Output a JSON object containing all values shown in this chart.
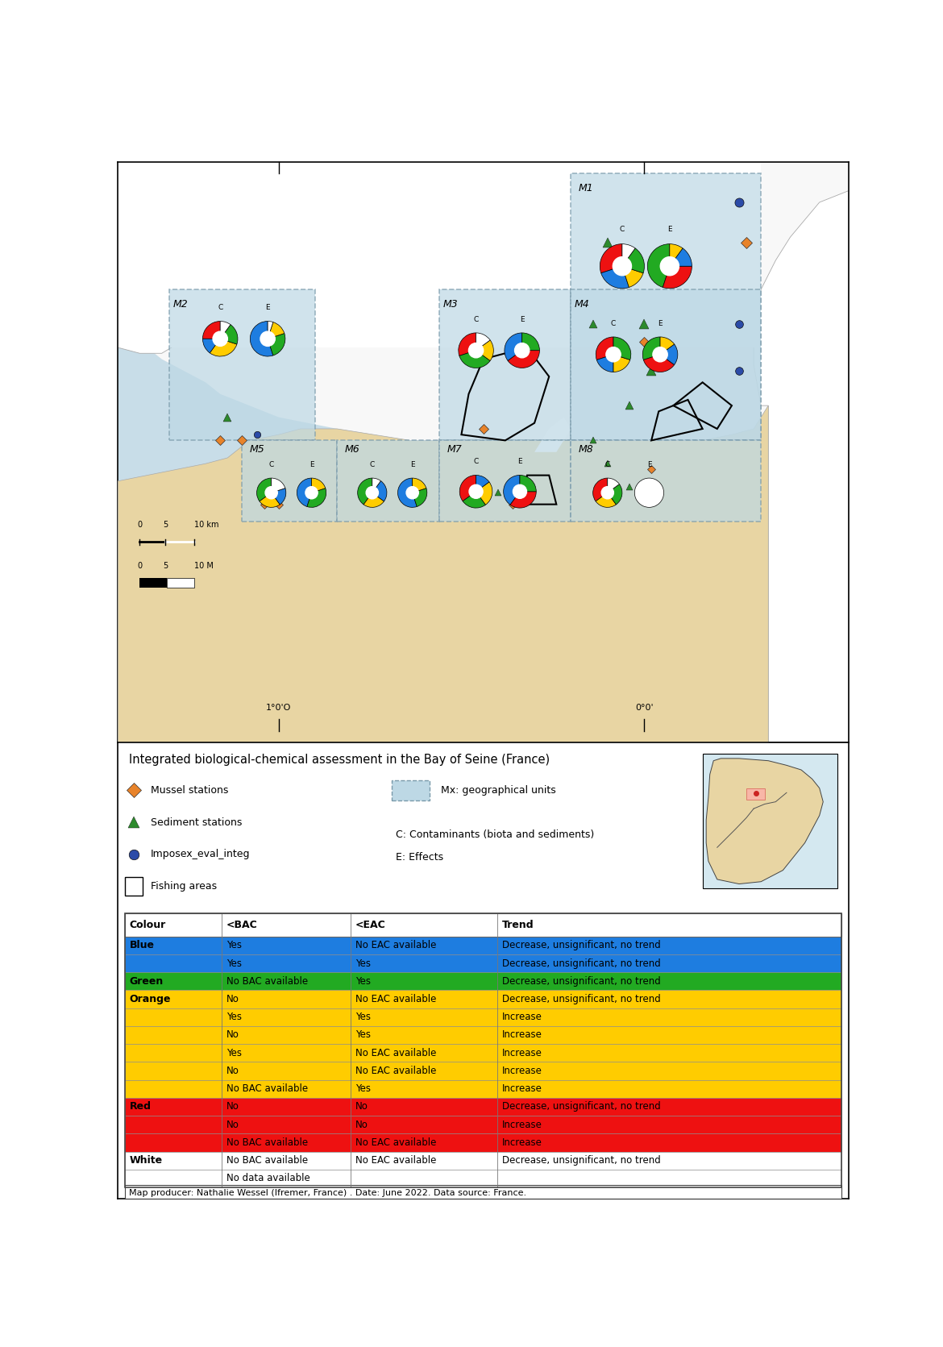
{
  "figure_width": 11.7,
  "figure_height": 16.71,
  "sea_color": "#c8dde8",
  "land_color": "#e8d5a3",
  "land_color_white": "#ffffff",
  "unit_fill_color": "#bdd8e5",
  "unit_border_color": "#7a9aaa",
  "title_legend": "Integrated biological-chemical assessment in the Bay of Seine (France)",
  "table_headers": [
    "Colour",
    "<BAC",
    "<EAC",
    "Trend"
  ],
  "table_rows": [
    {
      "color": "#1e7de0",
      "label": "Blue",
      "bac": "Yes",
      "eac": "No EAC available",
      "trend": "Decrease, unsignificant, no trend"
    },
    {
      "color": "#1e7de0",
      "label": "",
      "bac": "Yes",
      "eac": "Yes",
      "trend": "Decrease, unsignificant, no trend"
    },
    {
      "color": "#22aa22",
      "label": "Green",
      "bac": "No BAC available",
      "eac": "Yes",
      "trend": "Decrease, unsignificant, no trend"
    },
    {
      "color": "#ffcc00",
      "label": "Orange",
      "bac": "No",
      "eac": "No EAC available",
      "trend": "Decrease, unsignificant, no trend"
    },
    {
      "color": "#ffcc00",
      "label": "",
      "bac": "Yes",
      "eac": "Yes",
      "trend": "Increase"
    },
    {
      "color": "#ffcc00",
      "label": "",
      "bac": "No",
      "eac": "Yes",
      "trend": "Increase"
    },
    {
      "color": "#ffcc00",
      "label": "",
      "bac": "Yes",
      "eac": "No EAC available",
      "trend": "Increase"
    },
    {
      "color": "#ffcc00",
      "label": "",
      "bac": "No",
      "eac": "No EAC available",
      "trend": "Increase"
    },
    {
      "color": "#ffcc00",
      "label": "",
      "bac": "No BAC available",
      "eac": "Yes",
      "trend": "Increase"
    },
    {
      "color": "#ee1111",
      "label": "Red",
      "bac": "No",
      "eac": "No",
      "trend": "Decrease, unsignificant, no trend"
    },
    {
      "color": "#ee1111",
      "label": "",
      "bac": "No",
      "eac": "No",
      "trend": "Increase"
    },
    {
      "color": "#ee1111",
      "label": "",
      "bac": "No BAC available",
      "eac": "No EAC available",
      "trend": "Increase"
    },
    {
      "color": "#ffffff",
      "label": "White",
      "bac": "No BAC available",
      "eac": "No EAC available",
      "trend": "Decrease, unsignificant, no trend"
    },
    {
      "color": "#ffffff",
      "label": "",
      "bac": "No data available",
      "eac": "",
      "trend": ""
    }
  ],
  "footer": "Map producer: Nathalie Wessel (Ifremer, France) . Date: June 2022. Data source: France.",
  "pie_charts": {
    "M1_C": {
      "slices": [
        0.3,
        0.25,
        0.15,
        0.2,
        0.1
      ],
      "colors": [
        "#ee1111",
        "#1e7de0",
        "#ffcc00",
        "#22aa22",
        "#ffffff"
      ]
    },
    "M1_E": {
      "slices": [
        0.45,
        0.3,
        0.15,
        0.1
      ],
      "colors": [
        "#22aa22",
        "#ee1111",
        "#1e7de0",
        "#ffcc00"
      ]
    },
    "M2_C": {
      "slices": [
        0.25,
        0.15,
        0.3,
        0.2,
        0.1
      ],
      "colors": [
        "#ee1111",
        "#1e7de0",
        "#ffcc00",
        "#22aa22",
        "#ffffff"
      ]
    },
    "M2_E": {
      "slices": [
        0.55,
        0.25,
        0.15,
        0.05
      ],
      "colors": [
        "#1e7de0",
        "#22aa22",
        "#ffcc00",
        "#ffffff"
      ]
    },
    "M3_C": {
      "slices": [
        0.3,
        0.35,
        0.2,
        0.15
      ],
      "colors": [
        "#ee1111",
        "#22aa22",
        "#ffcc00",
        "#ffffff"
      ]
    },
    "M3_E": {
      "slices": [
        0.35,
        0.4,
        0.25
      ],
      "colors": [
        "#1e7de0",
        "#ee1111",
        "#22aa22"
      ]
    },
    "M4_C": {
      "slices": [
        0.3,
        0.2,
        0.2,
        0.3
      ],
      "colors": [
        "#ee1111",
        "#1e7de0",
        "#ffcc00",
        "#22aa22"
      ]
    },
    "M4_E": {
      "slices": [
        0.3,
        0.35,
        0.2,
        0.15
      ],
      "colors": [
        "#22aa22",
        "#ee1111",
        "#1e7de0",
        "#ffcc00"
      ]
    },
    "M5_C": {
      "slices": [
        0.35,
        0.25,
        0.2,
        0.2
      ],
      "colors": [
        "#22aa22",
        "#ffcc00",
        "#1e7de0",
        "#ffffff"
      ]
    },
    "M5_E": {
      "slices": [
        0.45,
        0.35,
        0.2
      ],
      "colors": [
        "#1e7de0",
        "#22aa22",
        "#ffcc00"
      ]
    },
    "M6_C": {
      "slices": [
        0.4,
        0.25,
        0.25,
        0.1
      ],
      "colors": [
        "#22aa22",
        "#ffcc00",
        "#1e7de0",
        "#ffffff"
      ]
    },
    "M6_E": {
      "slices": [
        0.55,
        0.25,
        0.2
      ],
      "colors": [
        "#1e7de0",
        "#22aa22",
        "#ffcc00"
      ]
    },
    "M7_C": {
      "slices": [
        0.35,
        0.25,
        0.25,
        0.15
      ],
      "colors": [
        "#ee1111",
        "#22aa22",
        "#ffcc00",
        "#1e7de0"
      ]
    },
    "M7_E": {
      "slices": [
        0.4,
        0.35,
        0.25
      ],
      "colors": [
        "#1e7de0",
        "#ee1111",
        "#22aa22"
      ]
    },
    "M8_C": {
      "slices": [
        0.35,
        0.25,
        0.25,
        0.15
      ],
      "colors": [
        "#ee1111",
        "#ffcc00",
        "#22aa22",
        "#ffffff"
      ]
    },
    "M8_E": {
      "slices": [
        1.0
      ],
      "colors": [
        "#ffffff"
      ]
    }
  }
}
